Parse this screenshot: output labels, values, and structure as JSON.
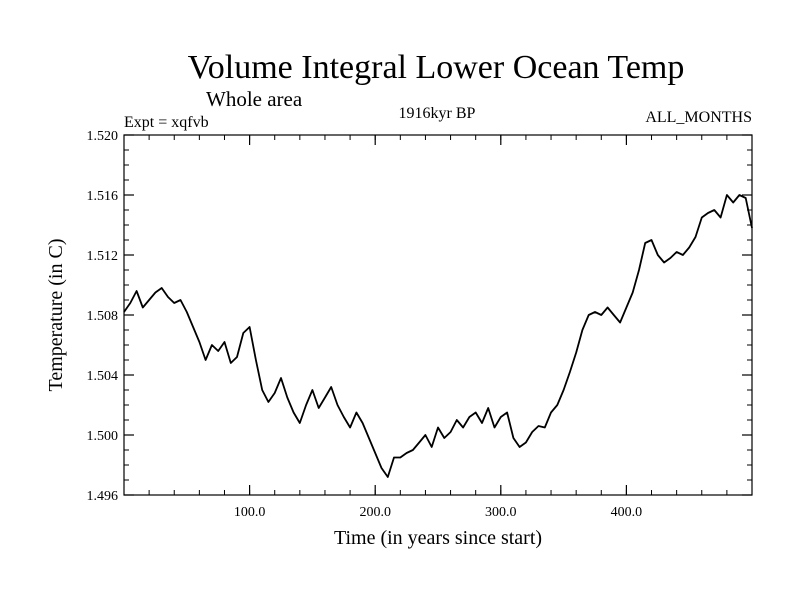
{
  "chart_data": {
    "type": "line",
    "title": "Volume Integral Lower Ocean Temp",
    "subtitle": "Whole area",
    "expt_label": "Expt = xqfvb",
    "period_label": "1916kyr BP",
    "months_label": "ALL_MONTHS",
    "xlabel": "Time (in years since start)",
    "ylabel": "Temperature (in C)",
    "xlim": [
      0,
      500
    ],
    "ylim": [
      1.496,
      1.52
    ],
    "x_ticks": [
      100,
      200,
      300,
      400
    ],
    "x_tick_labels": [
      "100.0",
      "200.0",
      "300.0",
      "400.0"
    ],
    "y_ticks": [
      1.496,
      1.5,
      1.504,
      1.508,
      1.512,
      1.516,
      1.52
    ],
    "y_tick_labels": [
      "1.496",
      "1.500",
      "1.504",
      "1.508",
      "1.512",
      "1.516",
      "1.520"
    ],
    "series": [
      {
        "name": "xqfvb",
        "x": [
          0,
          5,
          10,
          15,
          20,
          25,
          30,
          35,
          40,
          45,
          50,
          55,
          60,
          65,
          70,
          75,
          80,
          85,
          90,
          95,
          100,
          105,
          110,
          115,
          120,
          125,
          130,
          135,
          140,
          145,
          150,
          155,
          160,
          165,
          170,
          175,
          180,
          185,
          190,
          195,
          200,
          205,
          210,
          215,
          220,
          225,
          230,
          235,
          240,
          245,
          250,
          255,
          260,
          265,
          270,
          275,
          280,
          285,
          290,
          295,
          300,
          305,
          310,
          315,
          320,
          325,
          330,
          335,
          340,
          345,
          350,
          355,
          360,
          365,
          370,
          375,
          380,
          385,
          390,
          395,
          400,
          405,
          410,
          415,
          420,
          425,
          430,
          435,
          440,
          445,
          450,
          455,
          460,
          465,
          470,
          475,
          480,
          485,
          490,
          495,
          500
        ],
        "values": [
          1.5082,
          1.5088,
          1.5096,
          1.5085,
          1.509,
          1.5095,
          1.5098,
          1.5092,
          1.5088,
          1.509,
          1.5082,
          1.5072,
          1.5062,
          1.505,
          1.506,
          1.5056,
          1.5062,
          1.5048,
          1.5052,
          1.5068,
          1.5072,
          1.505,
          1.503,
          1.5022,
          1.5028,
          1.5038,
          1.5025,
          1.5015,
          1.5008,
          1.502,
          1.503,
          1.5018,
          1.5025,
          1.5032,
          1.502,
          1.5012,
          1.5005,
          1.5015,
          1.5008,
          1.4998,
          1.4988,
          1.4978,
          1.4972,
          1.4985,
          1.4985,
          1.4988,
          1.499,
          1.4995,
          1.5,
          1.4992,
          1.5005,
          1.4998,
          1.5002,
          1.501,
          1.5005,
          1.5012,
          1.5015,
          1.5008,
          1.5018,
          1.5005,
          1.5012,
          1.5015,
          1.4998,
          1.4992,
          1.4995,
          1.5002,
          1.5006,
          1.5005,
          1.5015,
          1.502,
          1.503,
          1.5042,
          1.5055,
          1.507,
          1.508,
          1.5082,
          1.508,
          1.5085,
          1.508,
          1.5075,
          1.5085,
          1.5095,
          1.511,
          1.5128,
          1.513,
          1.512,
          1.5115,
          1.5118,
          1.5122,
          1.512,
          1.5125,
          1.5132,
          1.5145,
          1.5148,
          1.515,
          1.5145,
          1.516,
          1.5155,
          1.516,
          1.5158,
          1.5138
        ]
      }
    ]
  }
}
